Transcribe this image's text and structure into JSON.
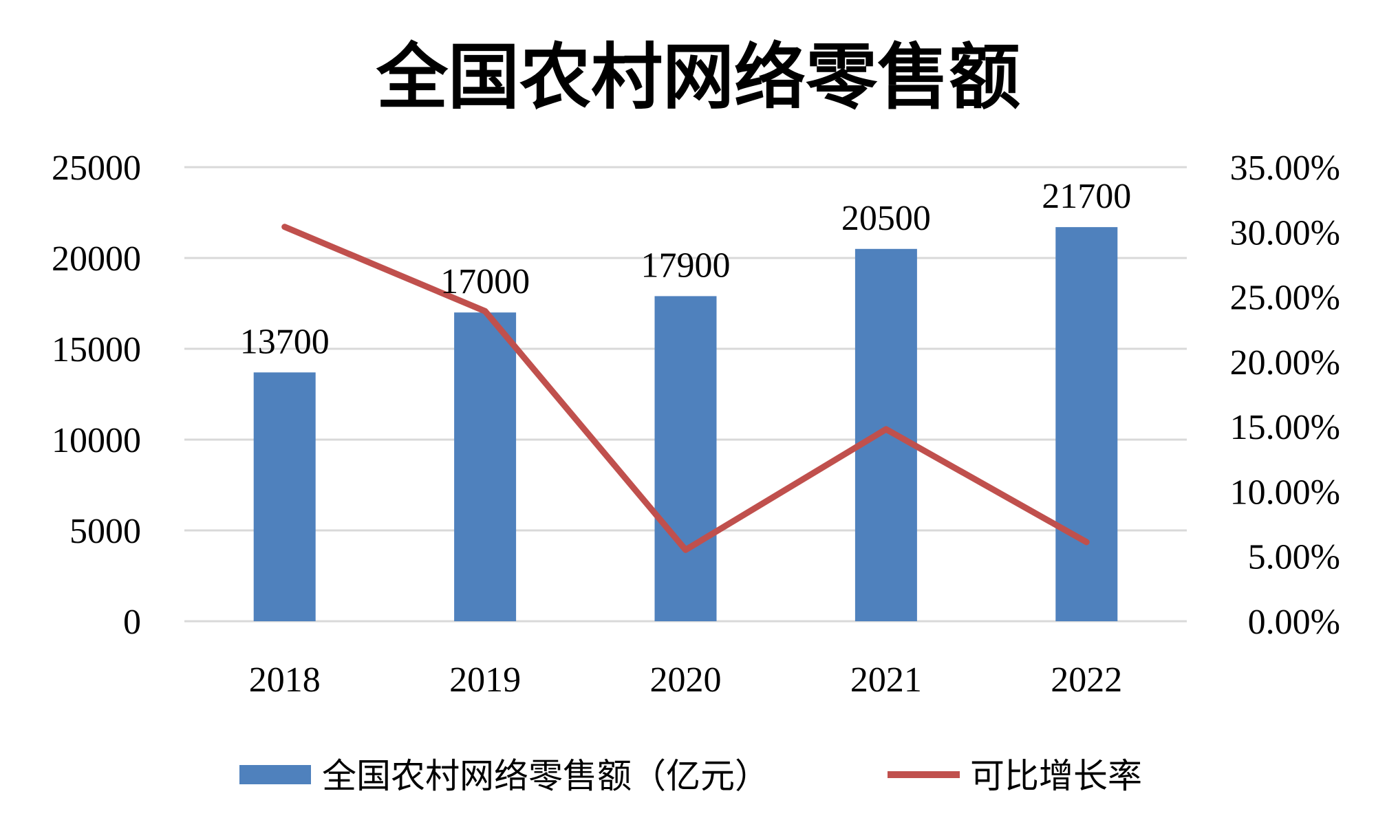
{
  "chart_data": {
    "type": "bar",
    "title": "全国农村网络零售额",
    "categories": [
      "2018",
      "2019",
      "2020",
      "2021",
      "2022"
    ],
    "series": [
      {
        "name": "全国农村网络零售额（亿元）",
        "type": "bar",
        "axis": "left",
        "color": "#4f81bd",
        "values": [
          13700,
          17000,
          17900,
          20500,
          21700
        ],
        "labels": [
          "13700",
          "17000",
          "17900",
          "20500",
          "21700"
        ]
      },
      {
        "name": "可比增长率",
        "type": "line",
        "axis": "right",
        "color": "#c0504d",
        "values": [
          30.4,
          23.9,
          5.5,
          14.8,
          6.1
        ]
      }
    ],
    "left_axis": {
      "ylim": [
        0,
        25000
      ],
      "ticks": [
        0,
        5000,
        10000,
        15000,
        20000,
        25000
      ],
      "tick_labels": [
        "0",
        "5000",
        "10000",
        "15000",
        "20000",
        "25000"
      ]
    },
    "right_axis": {
      "ylim": [
        0,
        35
      ],
      "ticks": [
        0,
        5,
        10,
        15,
        20,
        25,
        30,
        35
      ],
      "tick_labels": [
        "0.00%",
        "5.00%",
        "10.00%",
        "15.00%",
        "20.00%",
        "25.00%",
        "30.00%",
        "35.00%"
      ]
    },
    "grid": true,
    "legend_position": "bottom",
    "xlabel": "",
    "ylabel": ""
  }
}
